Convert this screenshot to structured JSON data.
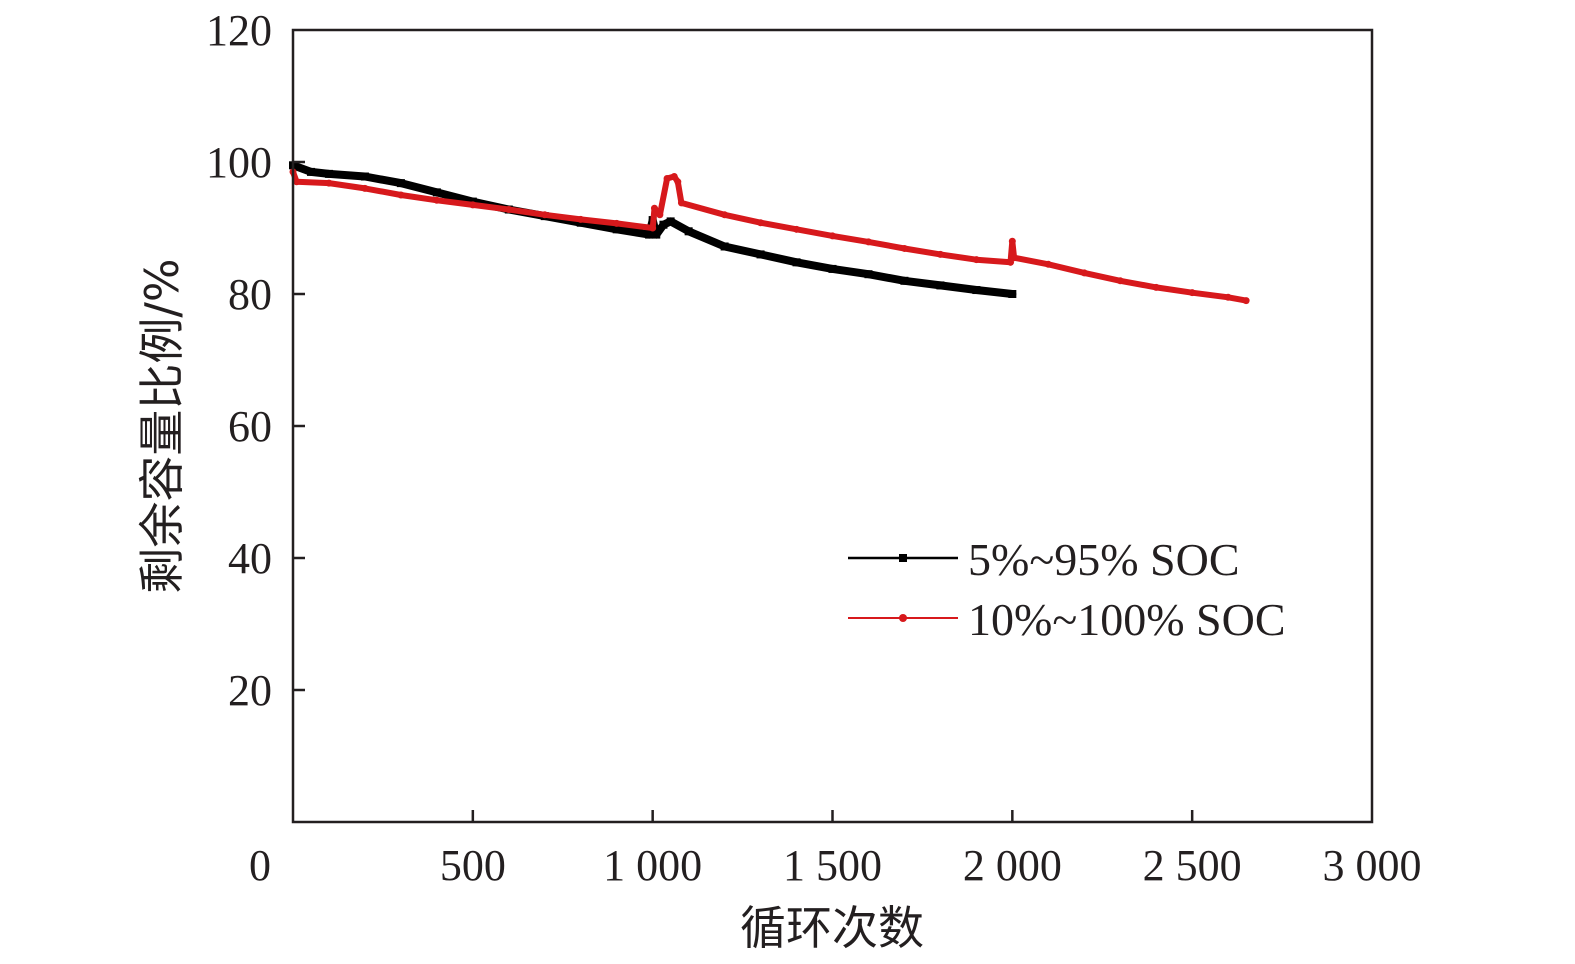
{
  "chart_data": {
    "type": "line",
    "title": "",
    "xlabel": "循环次数",
    "ylabel": "剩余容量比例/%",
    "xlim": [
      0,
      3000
    ],
    "ylim": [
      0,
      120
    ],
    "x_ticks": [
      {
        "value": 0,
        "label": "0"
      },
      {
        "value": 500,
        "label": "500"
      },
      {
        "value": 1000,
        "label": "1 000"
      },
      {
        "value": 1500,
        "label": "1 500"
      },
      {
        "value": 2000,
        "label": "2 000"
      },
      {
        "value": 2500,
        "label": "2 500"
      },
      {
        "value": 3000,
        "label": "3 000"
      }
    ],
    "y_ticks": [
      {
        "value": 20,
        "label": "20"
      },
      {
        "value": 40,
        "label": "40"
      },
      {
        "value": 60,
        "label": "60"
      },
      {
        "value": 80,
        "label": "80"
      },
      {
        "value": 100,
        "label": "100"
      },
      {
        "value": 120,
        "label": "120"
      }
    ],
    "grid": false,
    "legend_position": "lower-right",
    "series": [
      {
        "name": "5%~95% SOC",
        "color": "#000000",
        "marker": "square",
        "x": [
          0,
          50,
          100,
          200,
          300,
          400,
          500,
          600,
          700,
          800,
          900,
          990,
          1000,
          1010,
          1030,
          1050,
          1100,
          1200,
          1300,
          1400,
          1500,
          1600,
          1700,
          1800,
          1900,
          2000
        ],
        "y": [
          99.5,
          98.5,
          98.2,
          97.8,
          96.8,
          95.4,
          94.0,
          92.8,
          91.8,
          90.8,
          89.8,
          89.0,
          91.2,
          89.0,
          90.5,
          91.0,
          89.5,
          87.2,
          86.0,
          84.8,
          83.8,
          83.0,
          82.0,
          81.3,
          80.6,
          80.0
        ]
      },
      {
        "name": "10%~100% SOC",
        "color": "#d7191c",
        "marker": "circle",
        "x": [
          0,
          10,
          100,
          200,
          300,
          400,
          500,
          600,
          700,
          800,
          900,
          1000,
          1005,
          1020,
          1040,
          1060,
          1070,
          1080,
          1200,
          1300,
          1400,
          1500,
          1600,
          1700,
          1800,
          1900,
          1995,
          2000,
          2005,
          2100,
          2200,
          2300,
          2400,
          2500,
          2600,
          2650
        ],
        "y": [
          98.5,
          97.0,
          96.8,
          96.0,
          95.0,
          94.2,
          93.5,
          92.8,
          92.0,
          91.3,
          90.7,
          90.0,
          93.0,
          92.0,
          97.5,
          97.8,
          97.0,
          93.8,
          92.0,
          90.8,
          89.8,
          88.8,
          87.9,
          86.9,
          86.0,
          85.2,
          84.8,
          88.0,
          85.5,
          84.5,
          83.2,
          82.0,
          81.0,
          80.2,
          79.5,
          79.0
        ]
      }
    ]
  }
}
